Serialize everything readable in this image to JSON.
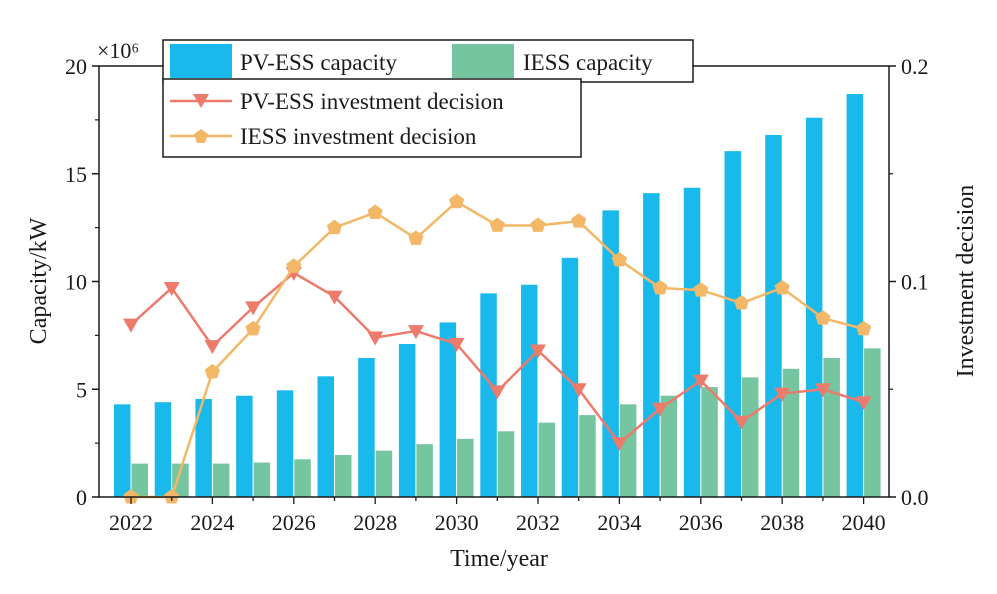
{
  "chart_data": {
    "type": "bar",
    "xlabel": "Time/year",
    "ylabel_left": "Capacity/kW",
    "ylabel_right": "Investment decision",
    "left_scale_label": "×10⁶",
    "ylim_left": [
      0,
      20
    ],
    "ylim_right": [
      0,
      0.2
    ],
    "yticks_left": [
      "0",
      "5",
      "10",
      "15",
      "20"
    ],
    "yticks_right": [
      "0.0",
      "0.1",
      "0.2"
    ],
    "years": [
      2022,
      2023,
      2024,
      2025,
      2026,
      2027,
      2028,
      2029,
      2030,
      2031,
      2032,
      2033,
      2034,
      2035,
      2036,
      2037,
      2038,
      2039,
      2040
    ],
    "xtick_labels": [
      "2022",
      "2024",
      "2026",
      "2028",
      "2030",
      "2032",
      "2034",
      "2036",
      "2038",
      "2040"
    ],
    "bar_series": [
      {
        "name": "PV-ESS capacity",
        "color": "#19b9ec",
        "values": [
          4.3,
          4.4,
          4.55,
          4.7,
          4.95,
          5.6,
          6.45,
          7.1,
          8.1,
          9.45,
          9.85,
          11.1,
          13.3,
          14.1,
          14.35,
          16.05,
          16.8,
          17.6,
          18.7
        ]
      },
      {
        "name": "IESS capacity",
        "color": "#75c5a0",
        "values": [
          1.55,
          1.55,
          1.55,
          1.6,
          1.75,
          1.95,
          2.15,
          2.45,
          2.7,
          3.05,
          3.45,
          3.8,
          4.3,
          4.7,
          5.1,
          5.55,
          5.95,
          6.45,
          6.9
        ]
      }
    ],
    "line_series": [
      {
        "name": "PV-ESS investment decision",
        "color": "#ec7b6c",
        "marker": "triangle-down",
        "values": [
          0.08,
          0.097,
          0.07,
          0.088,
          0.104,
          0.093,
          0.074,
          0.077,
          0.071,
          0.049,
          0.068,
          0.05,
          0.025,
          0.041,
          0.054,
          0.035,
          0.048,
          0.05,
          0.044
        ]
      },
      {
        "name": "IESS investment decision",
        "color": "#f2b867",
        "marker": "pentagon",
        "values": [
          0.0,
          0.0,
          0.058,
          0.078,
          0.107,
          0.125,
          0.132,
          0.12,
          0.137,
          0.126,
          0.126,
          0.128,
          0.11,
          0.097,
          0.096,
          0.09,
          0.097,
          0.083,
          0.078
        ]
      }
    ]
  }
}
